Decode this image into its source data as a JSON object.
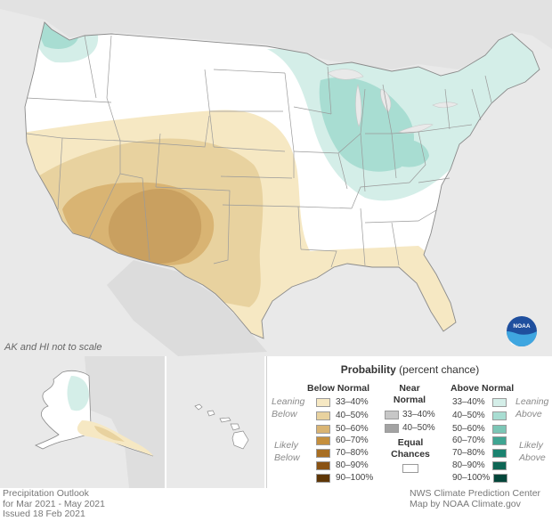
{
  "map": {
    "scale_note": "AK and HI not to scale"
  },
  "legend": {
    "title": "Probability",
    "title_suffix": "(percent chance)",
    "below_header": "Below Normal",
    "near_header_line1": "Near",
    "near_header_line2": "Normal",
    "above_header": "Above Normal",
    "leaning_below_1": "Leaning",
    "leaning_below_2": "Below",
    "likely_below_1": "Likely",
    "likely_below_2": "Below",
    "leaning_above_1": "Leaning",
    "leaning_above_2": "Above",
    "likely_above_1": "Likely",
    "likely_above_2": "Above",
    "equal_1": "Equal",
    "equal_2": "Chances",
    "below": [
      {
        "label": "33–40%",
        "color": "#f6e8c3"
      },
      {
        "label": "40–50%",
        "color": "#e8d29f"
      },
      {
        "label": "50–60%",
        "color": "#d9b473"
      },
      {
        "label": "60–70%",
        "color": "#c58f3d"
      },
      {
        "label": "70–80%",
        "color": "#a86e22"
      },
      {
        "label": "80–90%",
        "color": "#8a5314"
      },
      {
        "label": "90–100%",
        "color": "#5e3606"
      }
    ],
    "near": [
      {
        "label": "33–40%",
        "color": "#c7c7c7"
      },
      {
        "label": "40–50%",
        "color": "#a3a3a3"
      }
    ],
    "above": [
      {
        "label": "33–40%",
        "color": "#d4eee8"
      },
      {
        "label": "40–50%",
        "color": "#a8ddd2"
      },
      {
        "label": "50–60%",
        "color": "#7cc6b6"
      },
      {
        "label": "60–70%",
        "color": "#3fa592"
      },
      {
        "label": "70–80%",
        "color": "#1b8370"
      },
      {
        "label": "80–90%",
        "color": "#0d6554"
      },
      {
        "label": "90–100%",
        "color": "#03463a"
      }
    ]
  },
  "footer": {
    "left_line1": "Precipitation Outlook",
    "left_line2": "for Mar 2021 - May 2021",
    "left_line3": "Issued 18 Feb 2021",
    "right_line1": "NWS Climate Prediction Center",
    "right_line2": "Map by NOAA Climate.gov"
  },
  "logo": {
    "text": "NOAA"
  }
}
